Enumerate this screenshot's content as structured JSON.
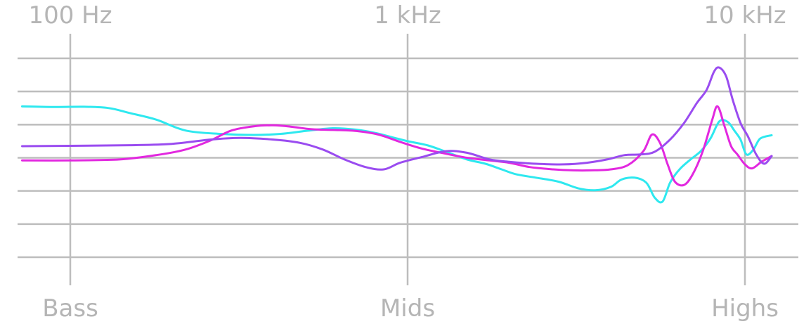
{
  "chart_data": {
    "type": "line",
    "x_scale": "log",
    "x_ticks": [
      {
        "label": "100 Hz",
        "value": 100
      },
      {
        "label": "1 kHz",
        "value": 1000
      },
      {
        "label": "10 kHz",
        "value": 10000
      }
    ],
    "x_band_labels": [
      {
        "label": "Bass",
        "value": 100
      },
      {
        "label": "Mids",
        "value": 1000
      },
      {
        "label": "Highs",
        "value": 10000
      }
    ],
    "xlim": [
      72,
      14000
    ],
    "ylim": [
      -4,
      3
    ],
    "y_gridlines": [
      3,
      2,
      1,
      0,
      -1,
      -2,
      -3
    ],
    "grid": true,
    "legend": "none",
    "series": [
      {
        "color": "#2ee8ef",
        "points": [
          [
            72,
            1.55
          ],
          [
            90,
            1.53
          ],
          [
            110,
            1.54
          ],
          [
            130,
            1.5
          ],
          [
            150,
            1.35
          ],
          [
            180,
            1.15
          ],
          [
            220,
            0.82
          ],
          [
            280,
            0.72
          ],
          [
            350,
            0.69
          ],
          [
            420,
            0.72
          ],
          [
            500,
            0.81
          ],
          [
            600,
            0.89
          ],
          [
            700,
            0.85
          ],
          [
            800,
            0.75
          ],
          [
            900,
            0.62
          ],
          [
            1000,
            0.5
          ],
          [
            1150,
            0.37
          ],
          [
            1300,
            0.18
          ],
          [
            1500,
            -0.05
          ],
          [
            1700,
            -0.18
          ],
          [
            1900,
            -0.35
          ],
          [
            2100,
            -0.5
          ],
          [
            2400,
            -0.6
          ],
          [
            2800,
            -0.72
          ],
          [
            3200,
            -0.92
          ],
          [
            3600,
            -0.98
          ],
          [
            4000,
            -0.88
          ],
          [
            4300,
            -0.66
          ],
          [
            4700,
            -0.6
          ],
          [
            5100,
            -0.75
          ],
          [
            5400,
            -1.2
          ],
          [
            5700,
            -1.32
          ],
          [
            6000,
            -0.75
          ],
          [
            6400,
            -0.35
          ],
          [
            6900,
            -0.05
          ],
          [
            7400,
            0.2
          ],
          [
            7900,
            0.58
          ],
          [
            8400,
            1.1
          ],
          [
            8900,
            1.08
          ],
          [
            9300,
            0.82
          ],
          [
            9700,
            0.55
          ],
          [
            10100,
            0.1
          ],
          [
            10600,
            0.25
          ],
          [
            11100,
            0.58
          ],
          [
            12000,
            0.68
          ]
        ]
      },
      {
        "color": "#e228df",
        "points": [
          [
            72,
            -0.08
          ],
          [
            100,
            -0.08
          ],
          [
            140,
            -0.05
          ],
          [
            180,
            0.08
          ],
          [
            220,
            0.25
          ],
          [
            260,
            0.52
          ],
          [
            300,
            0.82
          ],
          [
            350,
            0.95
          ],
          [
            400,
            0.98
          ],
          [
            450,
            0.94
          ],
          [
            520,
            0.86
          ],
          [
            600,
            0.84
          ],
          [
            700,
            0.81
          ],
          [
            820,
            0.7
          ],
          [
            950,
            0.48
          ],
          [
            1100,
            0.28
          ],
          [
            1300,
            0.12
          ],
          [
            1500,
            0
          ],
          [
            1750,
            -0.08
          ],
          [
            2000,
            -0.15
          ],
          [
            2300,
            -0.28
          ],
          [
            2700,
            -0.35
          ],
          [
            3100,
            -0.38
          ],
          [
            3500,
            -0.38
          ],
          [
            4000,
            -0.35
          ],
          [
            4500,
            -0.22
          ],
          [
            5000,
            0.2
          ],
          [
            5300,
            0.7
          ],
          [
            5600,
            0.45
          ],
          [
            5900,
            -0.2
          ],
          [
            6200,
            -0.72
          ],
          [
            6600,
            -0.82
          ],
          [
            7000,
            -0.5
          ],
          [
            7500,
            0.2
          ],
          [
            8000,
            1.15
          ],
          [
            8300,
            1.55
          ],
          [
            8700,
            0.95
          ],
          [
            9100,
            0.35
          ],
          [
            9500,
            0.1
          ],
          [
            10000,
            -0.2
          ],
          [
            10500,
            -0.32
          ],
          [
            11200,
            -0.12
          ],
          [
            12000,
            0.05
          ]
        ]
      },
      {
        "color": "#9a4cf0",
        "points": [
          [
            72,
            0.35
          ],
          [
            100,
            0.36
          ],
          [
            150,
            0.38
          ],
          [
            200,
            0.42
          ],
          [
            260,
            0.55
          ],
          [
            320,
            0.6
          ],
          [
            400,
            0.55
          ],
          [
            480,
            0.45
          ],
          [
            560,
            0.25
          ],
          [
            650,
            -0.05
          ],
          [
            750,
            -0.28
          ],
          [
            850,
            -0.35
          ],
          [
            950,
            -0.15
          ],
          [
            1100,
            0.02
          ],
          [
            1300,
            0.2
          ],
          [
            1500,
            0.15
          ],
          [
            1750,
            -0.05
          ],
          [
            2000,
            -0.12
          ],
          [
            2400,
            -0.18
          ],
          [
            2900,
            -0.2
          ],
          [
            3400,
            -0.15
          ],
          [
            3900,
            -0.05
          ],
          [
            4400,
            0.08
          ],
          [
            4900,
            0.1
          ],
          [
            5400,
            0.18
          ],
          [
            6000,
            0.55
          ],
          [
            6600,
            1.05
          ],
          [
            7200,
            1.65
          ],
          [
            7700,
            2.05
          ],
          [
            8100,
            2.6
          ],
          [
            8400,
            2.72
          ],
          [
            8800,
            2.45
          ],
          [
            9200,
            1.75
          ],
          [
            9700,
            1.05
          ],
          [
            10200,
            0.65
          ],
          [
            10800,
            0.1
          ],
          [
            11400,
            -0.18
          ],
          [
            12000,
            0.05
          ]
        ]
      }
    ]
  }
}
